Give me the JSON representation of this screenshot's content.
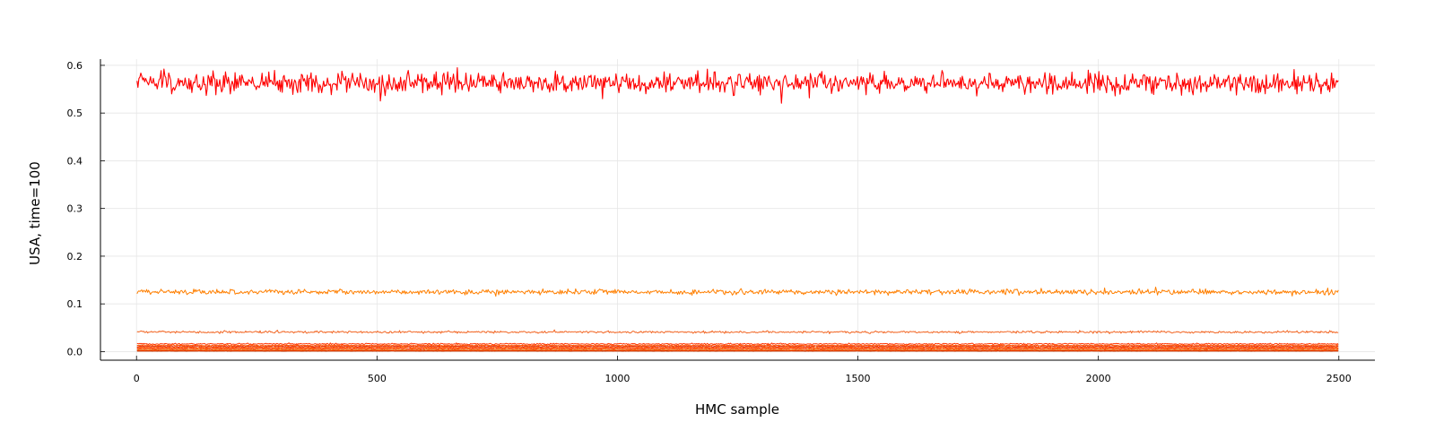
{
  "chart_data": {
    "type": "line",
    "title": "",
    "xlabel": "HMC sample",
    "ylabel": "USA, time=100",
    "xlim": [
      -75,
      2575
    ],
    "ylim": [
      -0.018,
      0.613
    ],
    "x_ticks": [
      0,
      500,
      1000,
      1500,
      2000,
      2500
    ],
    "x_tick_labels": [
      "0",
      "500",
      "1000",
      "1500",
      "2000",
      "2500"
    ],
    "y_ticks": [
      0.0,
      0.1,
      0.2,
      0.3,
      0.4,
      0.5,
      0.6
    ],
    "y_tick_labels": [
      "0.0",
      "0.1",
      "0.2",
      "0.3",
      "0.4",
      "0.5",
      "0.6"
    ],
    "grid": true,
    "legend": "none",
    "n_samples": 2500,
    "series": [
      {
        "mean": 0.562,
        "noise": 0.011,
        "color": "#ff0000"
      },
      {
        "mean": 0.125,
        "noise": 0.0028,
        "color": "#ff7f00"
      },
      {
        "mean": 0.041,
        "noise": 0.0012,
        "color": "#f26522"
      },
      {
        "mean": 0.016,
        "noise": 0.0007,
        "color": "#ff3300"
      },
      {
        "mean": 0.013,
        "noise": 0.0006,
        "color": "#ff5a00"
      },
      {
        "mean": 0.011,
        "noise": 0.0006,
        "color": "#e0301e"
      },
      {
        "mean": 0.009,
        "noise": 0.0005,
        "color": "#ff6600"
      },
      {
        "mean": 0.007,
        "noise": 0.0005,
        "color": "#ff2200"
      },
      {
        "mean": 0.005,
        "noise": 0.0004,
        "color": "#ff8c1a"
      },
      {
        "mean": 0.003,
        "noise": 0.0003,
        "color": "#d63a00"
      },
      {
        "mean": 0.002,
        "noise": 0.0002,
        "color": "#ff4500"
      },
      {
        "mean": 0.001,
        "noise": 0.0001,
        "color": "#b83200"
      }
    ]
  }
}
